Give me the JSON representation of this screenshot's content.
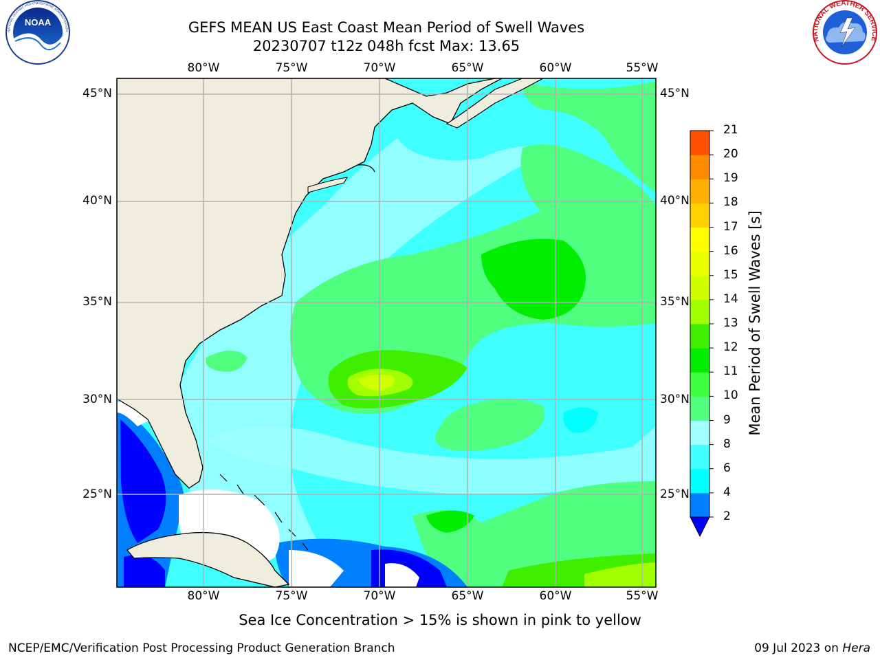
{
  "title": {
    "line1": "GEFS MEAN US East Coast Mean Period of Swell Waves",
    "line2": "20230707 t12z 048h fcst   Max: 13.65"
  },
  "logos": {
    "left": {
      "name": "noaa-logo",
      "text": "NOAA",
      "ring_text": "NATIONAL OCEANIC AND ATMOSPHERIC ADMINISTRATION · U.S. DEPARTMENT OF COMMERCE"
    },
    "right": {
      "name": "nws-logo",
      "ring_text": "NATIONAL WEATHER SERVICE"
    }
  },
  "map": {
    "lon_labels": [
      "80°W",
      "75°W",
      "70°W",
      "65°W",
      "60°W",
      "55°W"
    ],
    "lat_labels": [
      "45°N",
      "40°N",
      "35°N",
      "30°N",
      "25°N"
    ],
    "colors": {
      "land": "#efedde",
      "coast": "#000000",
      "grid": "#b0b0b0"
    }
  },
  "colorbar": {
    "label": "Mean Period of Swell Waves [s]",
    "ticks": [
      "2",
      "4",
      "6",
      "8",
      "9",
      "10",
      "11",
      "12",
      "13",
      "14",
      "15",
      "16",
      "17",
      "18",
      "19",
      "20",
      "21"
    ],
    "under_color": "#0000ff",
    "colors": [
      "#0080ff",
      "#00ffff",
      "#40ffff",
      "#a0ffff",
      "#50ff80",
      "#40ff40",
      "#00ee00",
      "#40ee00",
      "#a0ff00",
      "#d0ff00",
      "#e8ff00",
      "#ffff00",
      "#ffd000",
      "#ffb000",
      "#ff8c00",
      "#ff5000",
      "#ff2000",
      "#ff0000"
    ]
  },
  "note": "Sea Ice Concentration > 15% is shown in pink to yellow",
  "credit": {
    "left": "NCEP/EMC/Verification Post Processing Product Generation Branch",
    "date": "09 Jul 2023 on ",
    "machine": "Hera"
  }
}
